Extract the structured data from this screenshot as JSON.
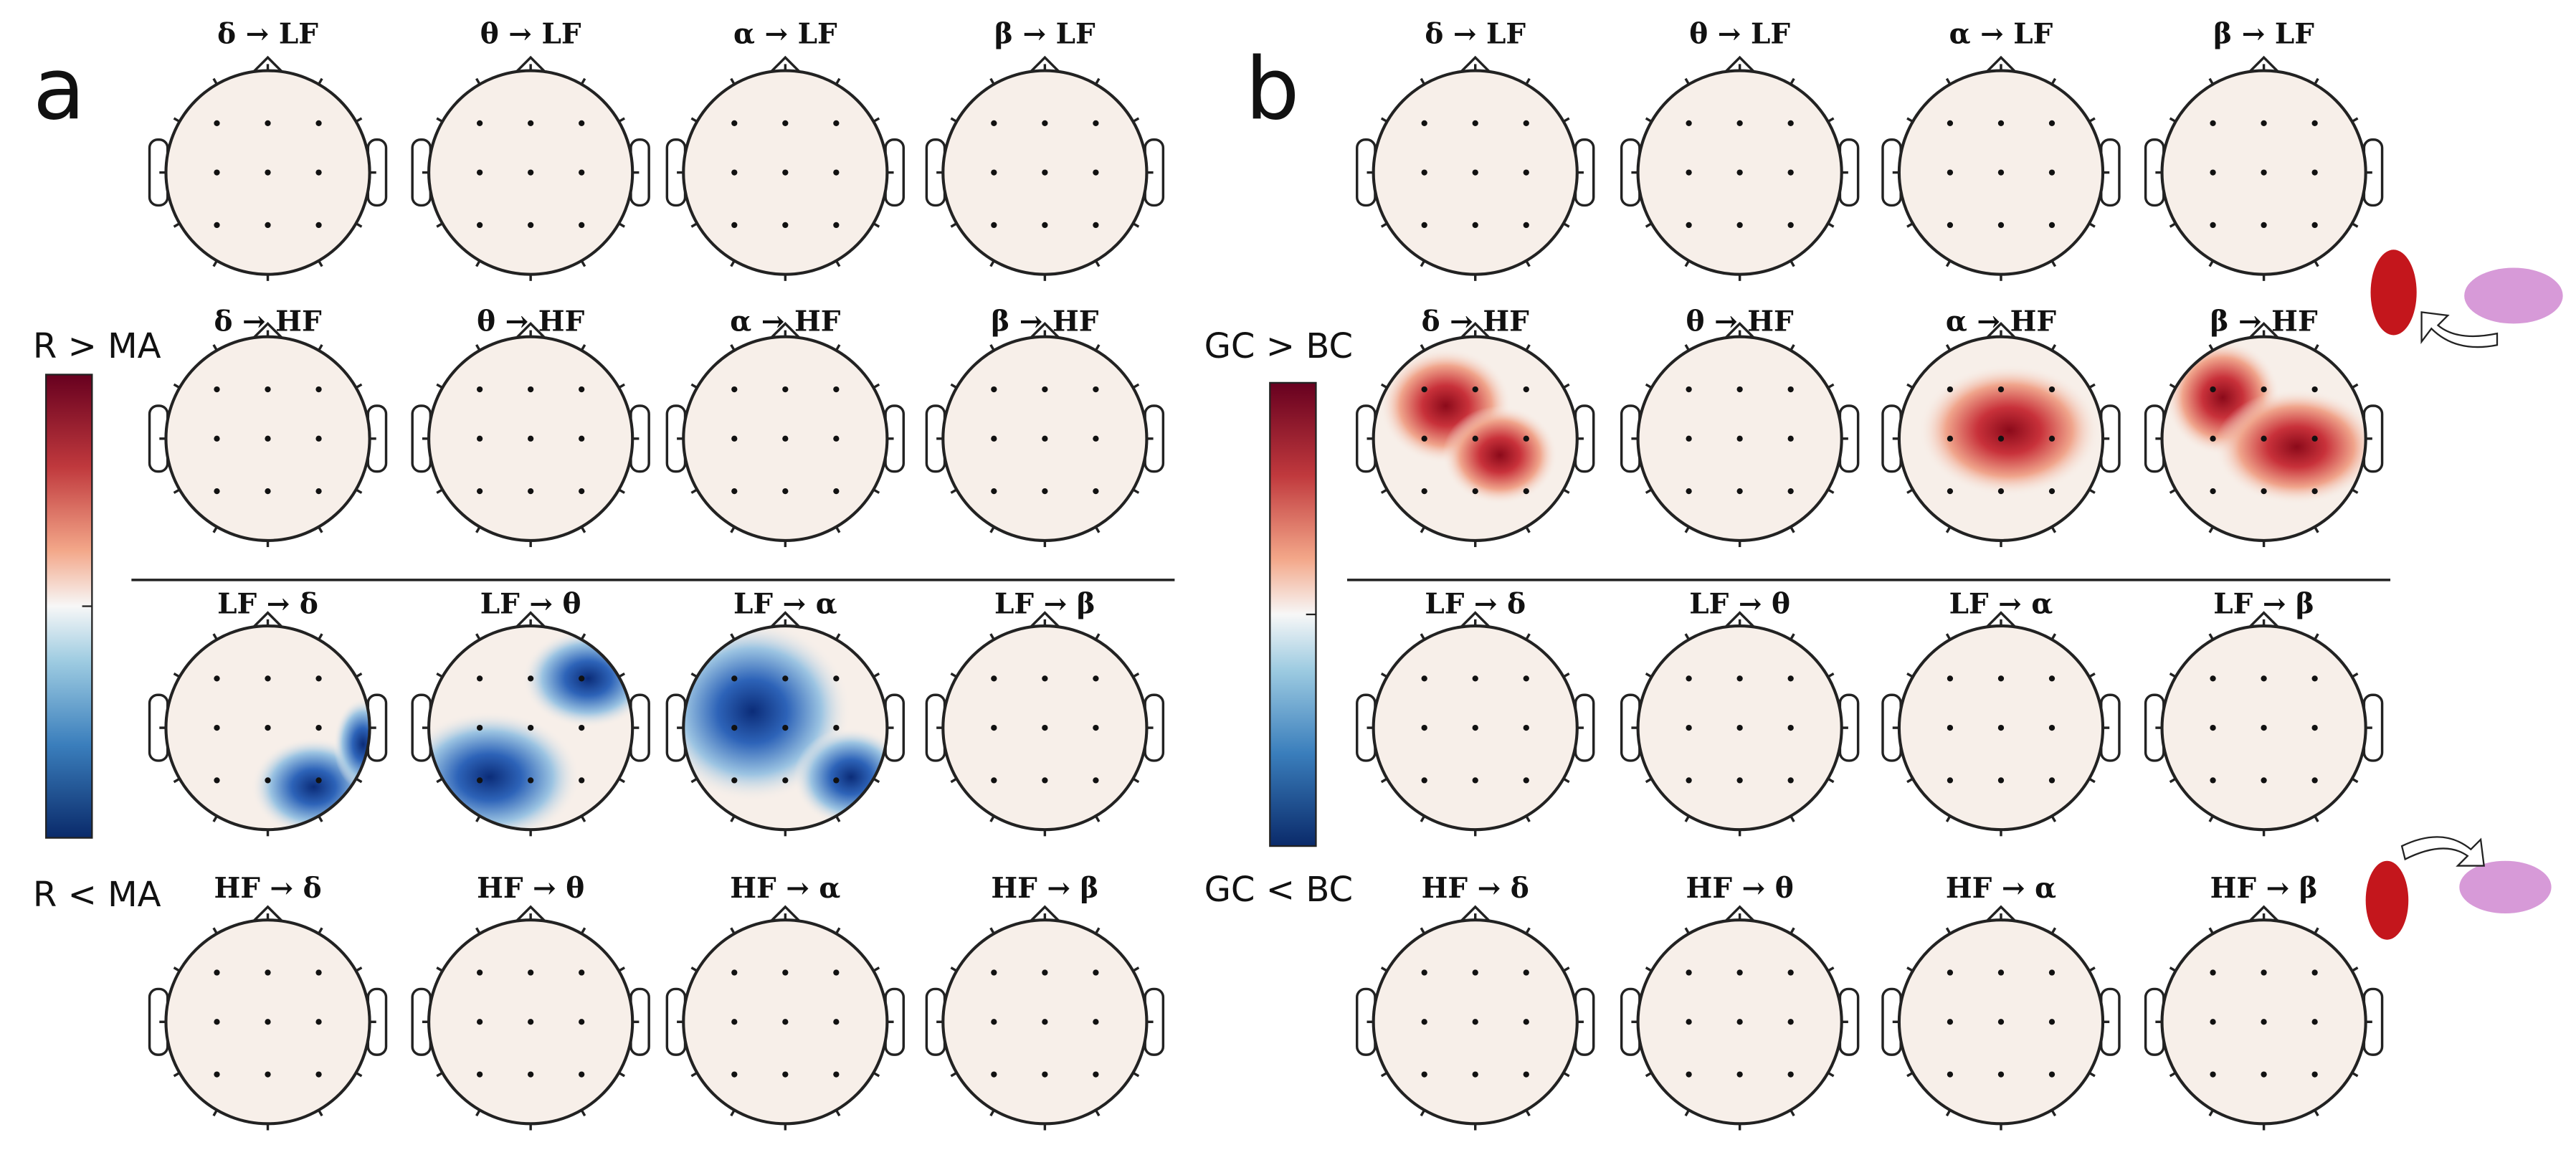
{
  "panels": [
    {
      "letter": "a",
      "label_top": "R > MA",
      "label_bottom": "R < MA",
      "rows": [
        [
          "δ → LF",
          "θ → LF",
          "α → LF",
          "β → LF"
        ],
        [
          "δ → HF",
          "θ → HF",
          "α → HF",
          "β → HF"
        ],
        [
          "LF → δ",
          "LF → θ",
          "LF → α",
          "LF → β"
        ],
        [
          "HF → δ",
          "HF → θ",
          "HF → α",
          "HF → β"
        ]
      ]
    },
    {
      "letter": "b",
      "label_top": "GC > BC",
      "label_bottom": "GC < BC",
      "rows": [
        [
          "δ → LF",
          "θ → LF",
          "α → LF",
          "β → LF"
        ],
        [
          "δ → HF",
          "θ → HF",
          "α → HF",
          "β → HF"
        ],
        [
          "LF → δ",
          "LF → θ",
          "LF → α",
          "LF → β"
        ],
        [
          "HF → δ",
          "HF → θ",
          "HF → α",
          "HF → β"
        ]
      ]
    }
  ]
}
